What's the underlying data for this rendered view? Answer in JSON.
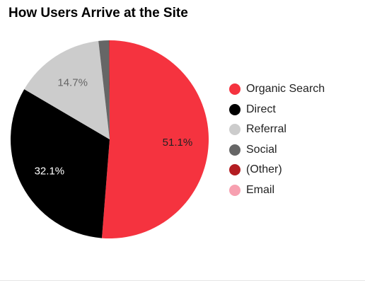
{
  "chart_data": {
    "type": "pie",
    "title": "How Users Arrive at the Site",
    "slices": [
      {
        "name": "Organic Search",
        "value": 51.1,
        "label": "51.1%",
        "color": "#f5333f",
        "label_color": "#222222"
      },
      {
        "name": "Direct",
        "value": 32.1,
        "label": "32.1%",
        "color": "#000000",
        "label_color": "#ffffff"
      },
      {
        "name": "Referral",
        "value": 14.7,
        "label": "14.7%",
        "color": "#cccccc",
        "label_color": "#666666"
      },
      {
        "name": "Social",
        "value": 1.7,
        "label": "",
        "color": "#666666",
        "label_color": "#ffffff"
      },
      {
        "name": "(Other)",
        "value": 0.1,
        "label": "",
        "color": "#b31d22",
        "label_color": "#ffffff"
      },
      {
        "name": "Email",
        "value": 0.0,
        "label": "",
        "color": "#f7a0b0",
        "label_color": "#ffffff"
      }
    ],
    "legend": {
      "position": "right"
    }
  }
}
